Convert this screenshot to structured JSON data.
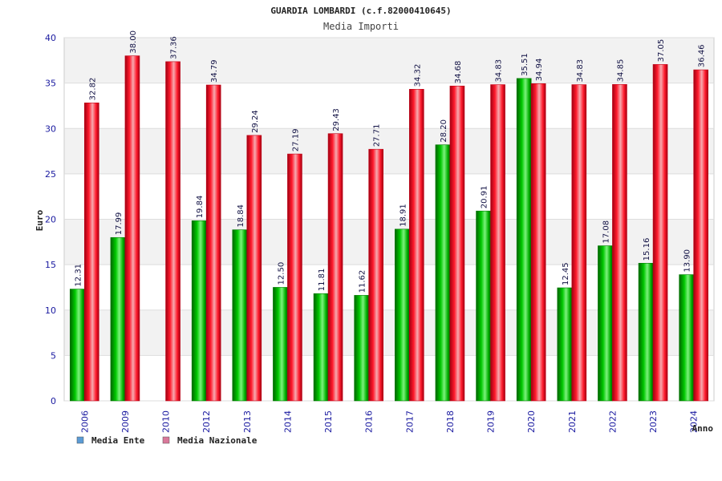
{
  "chart_data": {
    "type": "bar",
    "title": "GUARDIA LOMBARDI (c.f.82000410645)",
    "subtitle": "Media Importi",
    "xlabel": "Anno",
    "ylabel": "Euro",
    "ylim": [
      0,
      40
    ],
    "yticks": [
      0,
      5,
      10,
      15,
      20,
      25,
      30,
      35,
      40
    ],
    "grid": true,
    "legend_position": "bottom-left",
    "categories": [
      "2006",
      "2009",
      "2010",
      "2012",
      "2013",
      "2014",
      "2015",
      "2016",
      "2017",
      "2018",
      "2019",
      "2020",
      "2021",
      "2022",
      "2023",
      "2024"
    ],
    "series": [
      {
        "name": "Media Ente",
        "color": "#00b000",
        "legend_color": "#5b9bd5",
        "values": [
          12.31,
          17.99,
          null,
          19.84,
          18.84,
          12.5,
          11.81,
          11.62,
          18.91,
          28.2,
          20.91,
          35.51,
          12.45,
          17.08,
          15.16,
          13.9
        ],
        "labels": [
          "12.31",
          "17.99",
          "",
          "19.84",
          "18.84",
          "12.50",
          "11.81",
          "11.62",
          "18.91",
          "28.20",
          "20.91",
          "35.51",
          "12.45",
          "17.08",
          "15.16",
          "13.90"
        ]
      },
      {
        "name": "Media Nazionale",
        "color": "#e8001c",
        "legend_color": "#d9789a",
        "values": [
          32.82,
          38.0,
          37.36,
          34.79,
          29.24,
          27.19,
          29.43,
          27.71,
          34.32,
          34.68,
          34.83,
          34.94,
          34.83,
          34.85,
          37.05,
          36.46
        ],
        "labels": [
          "32.82",
          "38.00",
          "37.36",
          "34.79",
          "29.24",
          "27.19",
          "29.43",
          "27.71",
          "34.32",
          "34.68",
          "34.83",
          "34.94",
          "34.83",
          "34.85",
          "37.05",
          "36.46"
        ]
      }
    ]
  }
}
